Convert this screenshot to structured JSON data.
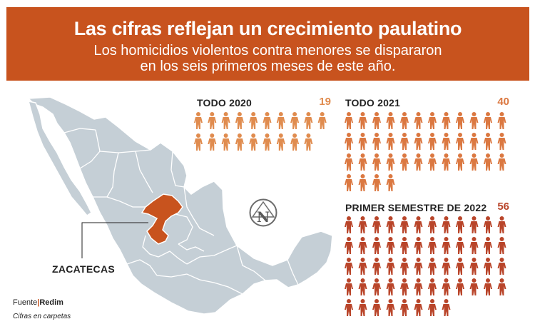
{
  "banner": {
    "title": "Las cifras reflejan un crecimiento paulatino",
    "subtitle_line1": "Los homicidios violentos contra menores se dispararon",
    "subtitle_line2": "en los seis primeros meses de este año."
  },
  "map": {
    "highlighted_state": "ZACATECAS",
    "land_color": "#c5cfd6",
    "border_color": "#ffffff",
    "highlight_color": "#c8531e"
  },
  "logo": {
    "letter": "N"
  },
  "groups": [
    {
      "label": "TODO 2020",
      "count": "19",
      "value": 19,
      "per_row": 10,
      "color": "#e08c4f"
    },
    {
      "label": "TODO 2021",
      "count": "40",
      "value": 40,
      "per_row": 12,
      "color": "#db7841"
    },
    {
      "label": "PRIMER SEMESTRE DE 2022",
      "count": "56",
      "value": 56,
      "per_row": 12,
      "color": "#b9452a"
    }
  ],
  "footer": {
    "source_prefix": "Fuente",
    "source_sep": "|",
    "source_org": "Redim",
    "note": "Cifras en carpetas"
  }
}
